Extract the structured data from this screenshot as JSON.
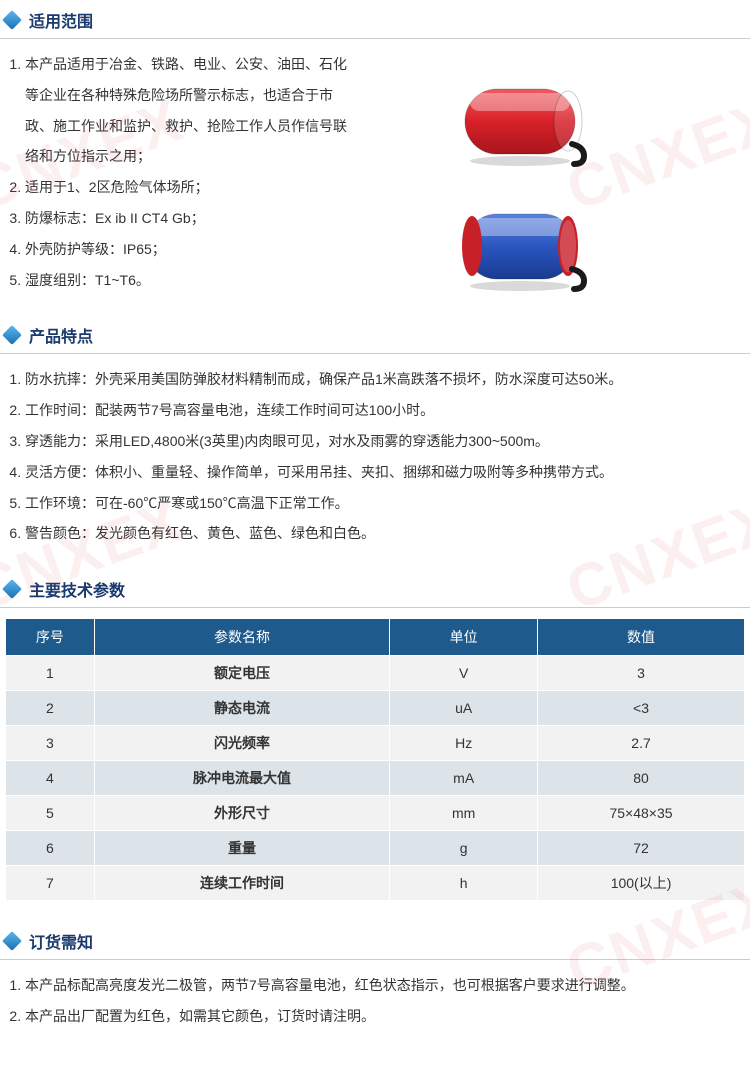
{
  "sections": {
    "scope": {
      "title": "适用范围",
      "items": [
        "本产品适用于冶金、铁路、电业、公安、油田、石化等企业在各种特殊危险场所警示标志，也适合于市政、施工作业和监护、救护、抢险工作人员作信号联络和方位指示之用；",
        "适用于1、2区危险气体场所；",
        "防爆标志：Ex ib II CT4 Gb；",
        "外壳防护等级：IP65；",
        "湿度组别：T1~T6。"
      ]
    },
    "features": {
      "title": "产品特点",
      "items": [
        "防水抗摔：外壳采用美国防弹胶材料精制而成，确保产品1米高跌落不损坏，防水深度可达50米。",
        "工作时间：配装两节7号高容量电池，连续工作时间可达100小时。",
        "穿透能力：采用LED,4800米(3英里)内肉眼可见，对水及雨雾的穿透能力300~500m。",
        "灵活方便：体积小、重量轻、操作简单，可采用吊挂、夹扣、捆绑和磁力吸附等多种携带方式。",
        "工作环境：可在-60℃严寒或150℃高温下正常工作。",
        "警告颜色：发光颜色有红色、黄色、蓝色、绿色和白色。"
      ]
    },
    "specs": {
      "title": "主要技术参数",
      "columns": [
        "序号",
        "参数名称",
        "单位",
        "数值"
      ],
      "rows": [
        [
          "1",
          "额定电压",
          "V",
          "3"
        ],
        [
          "2",
          "静态电流",
          "uA",
          "<3"
        ],
        [
          "3",
          "闪光频率",
          "Hz",
          "2.7"
        ],
        [
          "4",
          "脉冲电流最大值",
          "mA",
          "80"
        ],
        [
          "5",
          "外形尺寸",
          "mm",
          "75×48×35"
        ],
        [
          "6",
          "重量",
          "g",
          "72"
        ],
        [
          "7",
          "连续工作时间",
          "h",
          "100(以上)"
        ]
      ]
    },
    "ordering": {
      "title": "订货需知",
      "items": [
        "本产品标配高亮度发光二极管，两节7号高容量电池，红色状态指示，也可根据客户要求进行调整。",
        "本产品出厂配置为红色，如需其它颜色，订货时请注明。"
      ]
    }
  },
  "watermark": "CNXEX",
  "products": {
    "red": {
      "body": "#d82028",
      "body_dark": "#a8151c",
      "highlight": "#f05a60"
    },
    "blue": {
      "body": "#2a56c0",
      "body_dark": "#1a3a90",
      "highlight": "#5a82e0",
      "cap": "#c82028"
    }
  }
}
